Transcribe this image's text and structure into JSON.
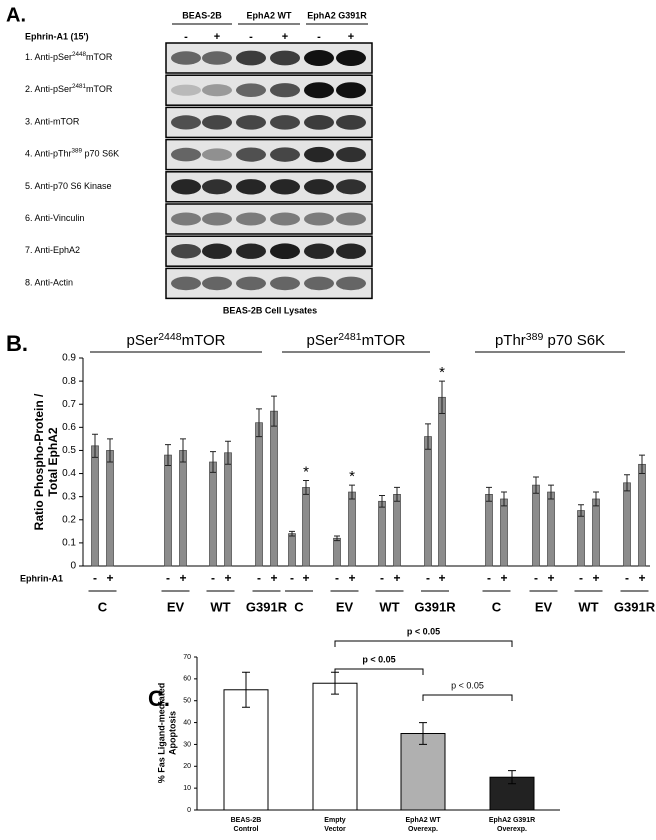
{
  "panel_a": {
    "label": "A.",
    "columns": [
      "BEAS-2B",
      "EphA2 WT",
      "EphA2 G391R"
    ],
    "treatment": "Ephrin-A1 (15')",
    "signs": [
      "-",
      "+",
      "-",
      "+",
      "-",
      "+"
    ],
    "rows": [
      {
        "text": "1. Anti-pSer",
        "sup": "2448",
        "after": "mTOR"
      },
      {
        "text": "2. Anti-pSer",
        "sup": "2481",
        "after": "mTOR"
      },
      {
        "text": "3. Anti-mTOR"
      },
      {
        "text": "4. Anti-pThr",
        "sup": "389",
        "after": " p70 S6K"
      },
      {
        "text": "5. Anti-p70 S6 Kinase"
      },
      {
        "text": "6. Anti-Vinculin"
      },
      {
        "text": "7. Anti-EphA2"
      },
      {
        "text": "8. Anti-Actin"
      }
    ],
    "caption": "BEAS-2B Cell Lysates"
  },
  "chart_data": [
    {
      "type": "bar",
      "label": "B.",
      "panels": [
        {
          "text": "pSer",
          "sup": "2448",
          "after": "mTOR"
        },
        {
          "text": "pSer",
          "sup": "2481",
          "after": "mTOR"
        },
        {
          "text": "pThr",
          "sup": "389",
          "after": " p70 S6K"
        }
      ],
      "y_label": [
        "Ratio Phospho-Protein /",
        "Total EphA2"
      ],
      "x_prefix": "Ephrin-A1",
      "categories": [
        "-",
        "+",
        "-",
        "+",
        "-",
        "+",
        "-",
        "+",
        "-",
        "+",
        "-",
        "+",
        "-",
        "+",
        "-",
        "+",
        "-",
        "+",
        "-",
        "+",
        "-",
        "+",
        "-",
        "+"
      ],
      "groups": [
        "C",
        "EV",
        "WT",
        "G391R",
        "C",
        "EV",
        "WT",
        "G391R",
        "C",
        "EV",
        "WT",
        "G391R"
      ],
      "values": [
        0.52,
        0.5,
        0.48,
        0.5,
        0.45,
        0.49,
        0.62,
        0.67,
        0.14,
        0.34,
        0.12,
        0.32,
        0.28,
        0.31,
        0.56,
        0.73,
        0.31,
        0.29,
        0.35,
        0.32,
        0.24,
        0.29,
        0.36,
        0.44
      ],
      "errors": [
        0.05,
        0.05,
        0.045,
        0.05,
        0.045,
        0.05,
        0.06,
        0.065,
        0.01,
        0.03,
        0.01,
        0.03,
        0.025,
        0.03,
        0.055,
        0.07,
        0.03,
        0.03,
        0.035,
        0.03,
        0.025,
        0.03,
        0.035,
        0.04
      ],
      "significance": [
        null,
        null,
        null,
        null,
        null,
        null,
        null,
        null,
        null,
        "*",
        null,
        "*",
        null,
        null,
        null,
        "*",
        null,
        null,
        null,
        null,
        null,
        null,
        null,
        null
      ],
      "color": "#8c8c8c",
      "ylim": [
        0,
        0.9
      ],
      "yticks": [
        0,
        0.1,
        0.2,
        0.3,
        0.4,
        0.5,
        0.6,
        0.7,
        0.8,
        0.9
      ]
    },
    {
      "type": "bar",
      "label": "C.",
      "y_label": [
        "% Fas Ligand-mediated",
        "Apoptosis"
      ],
      "categories": [
        [
          "BEAS-2B",
          "Control"
        ],
        [
          "Empty",
          "Vector"
        ],
        [
          "EphA2 WT",
          "Overexp."
        ],
        [
          "EphA2 G391R",
          "Overexp."
        ]
      ],
      "values": [
        55,
        58,
        35,
        15
      ],
      "errors": [
        8,
        5,
        5,
        3
      ],
      "colors": [
        "#ffffff",
        "#ffffff",
        "#b0b0b0",
        "#222222"
      ],
      "comparisons": [
        {
          "label": "p < 0.05",
          "pair": [
            1,
            3
          ],
          "bold": true
        },
        {
          "label": "p < 0.05",
          "pair": [
            1,
            2
          ],
          "bold": true
        },
        {
          "label": "p < 0.05",
          "pair": [
            2,
            3
          ],
          "bold": false
        }
      ],
      "ylim": [
        0,
        70
      ],
      "yticks": [
        0,
        10,
        20,
        30,
        40,
        50,
        60,
        70
      ]
    }
  ]
}
